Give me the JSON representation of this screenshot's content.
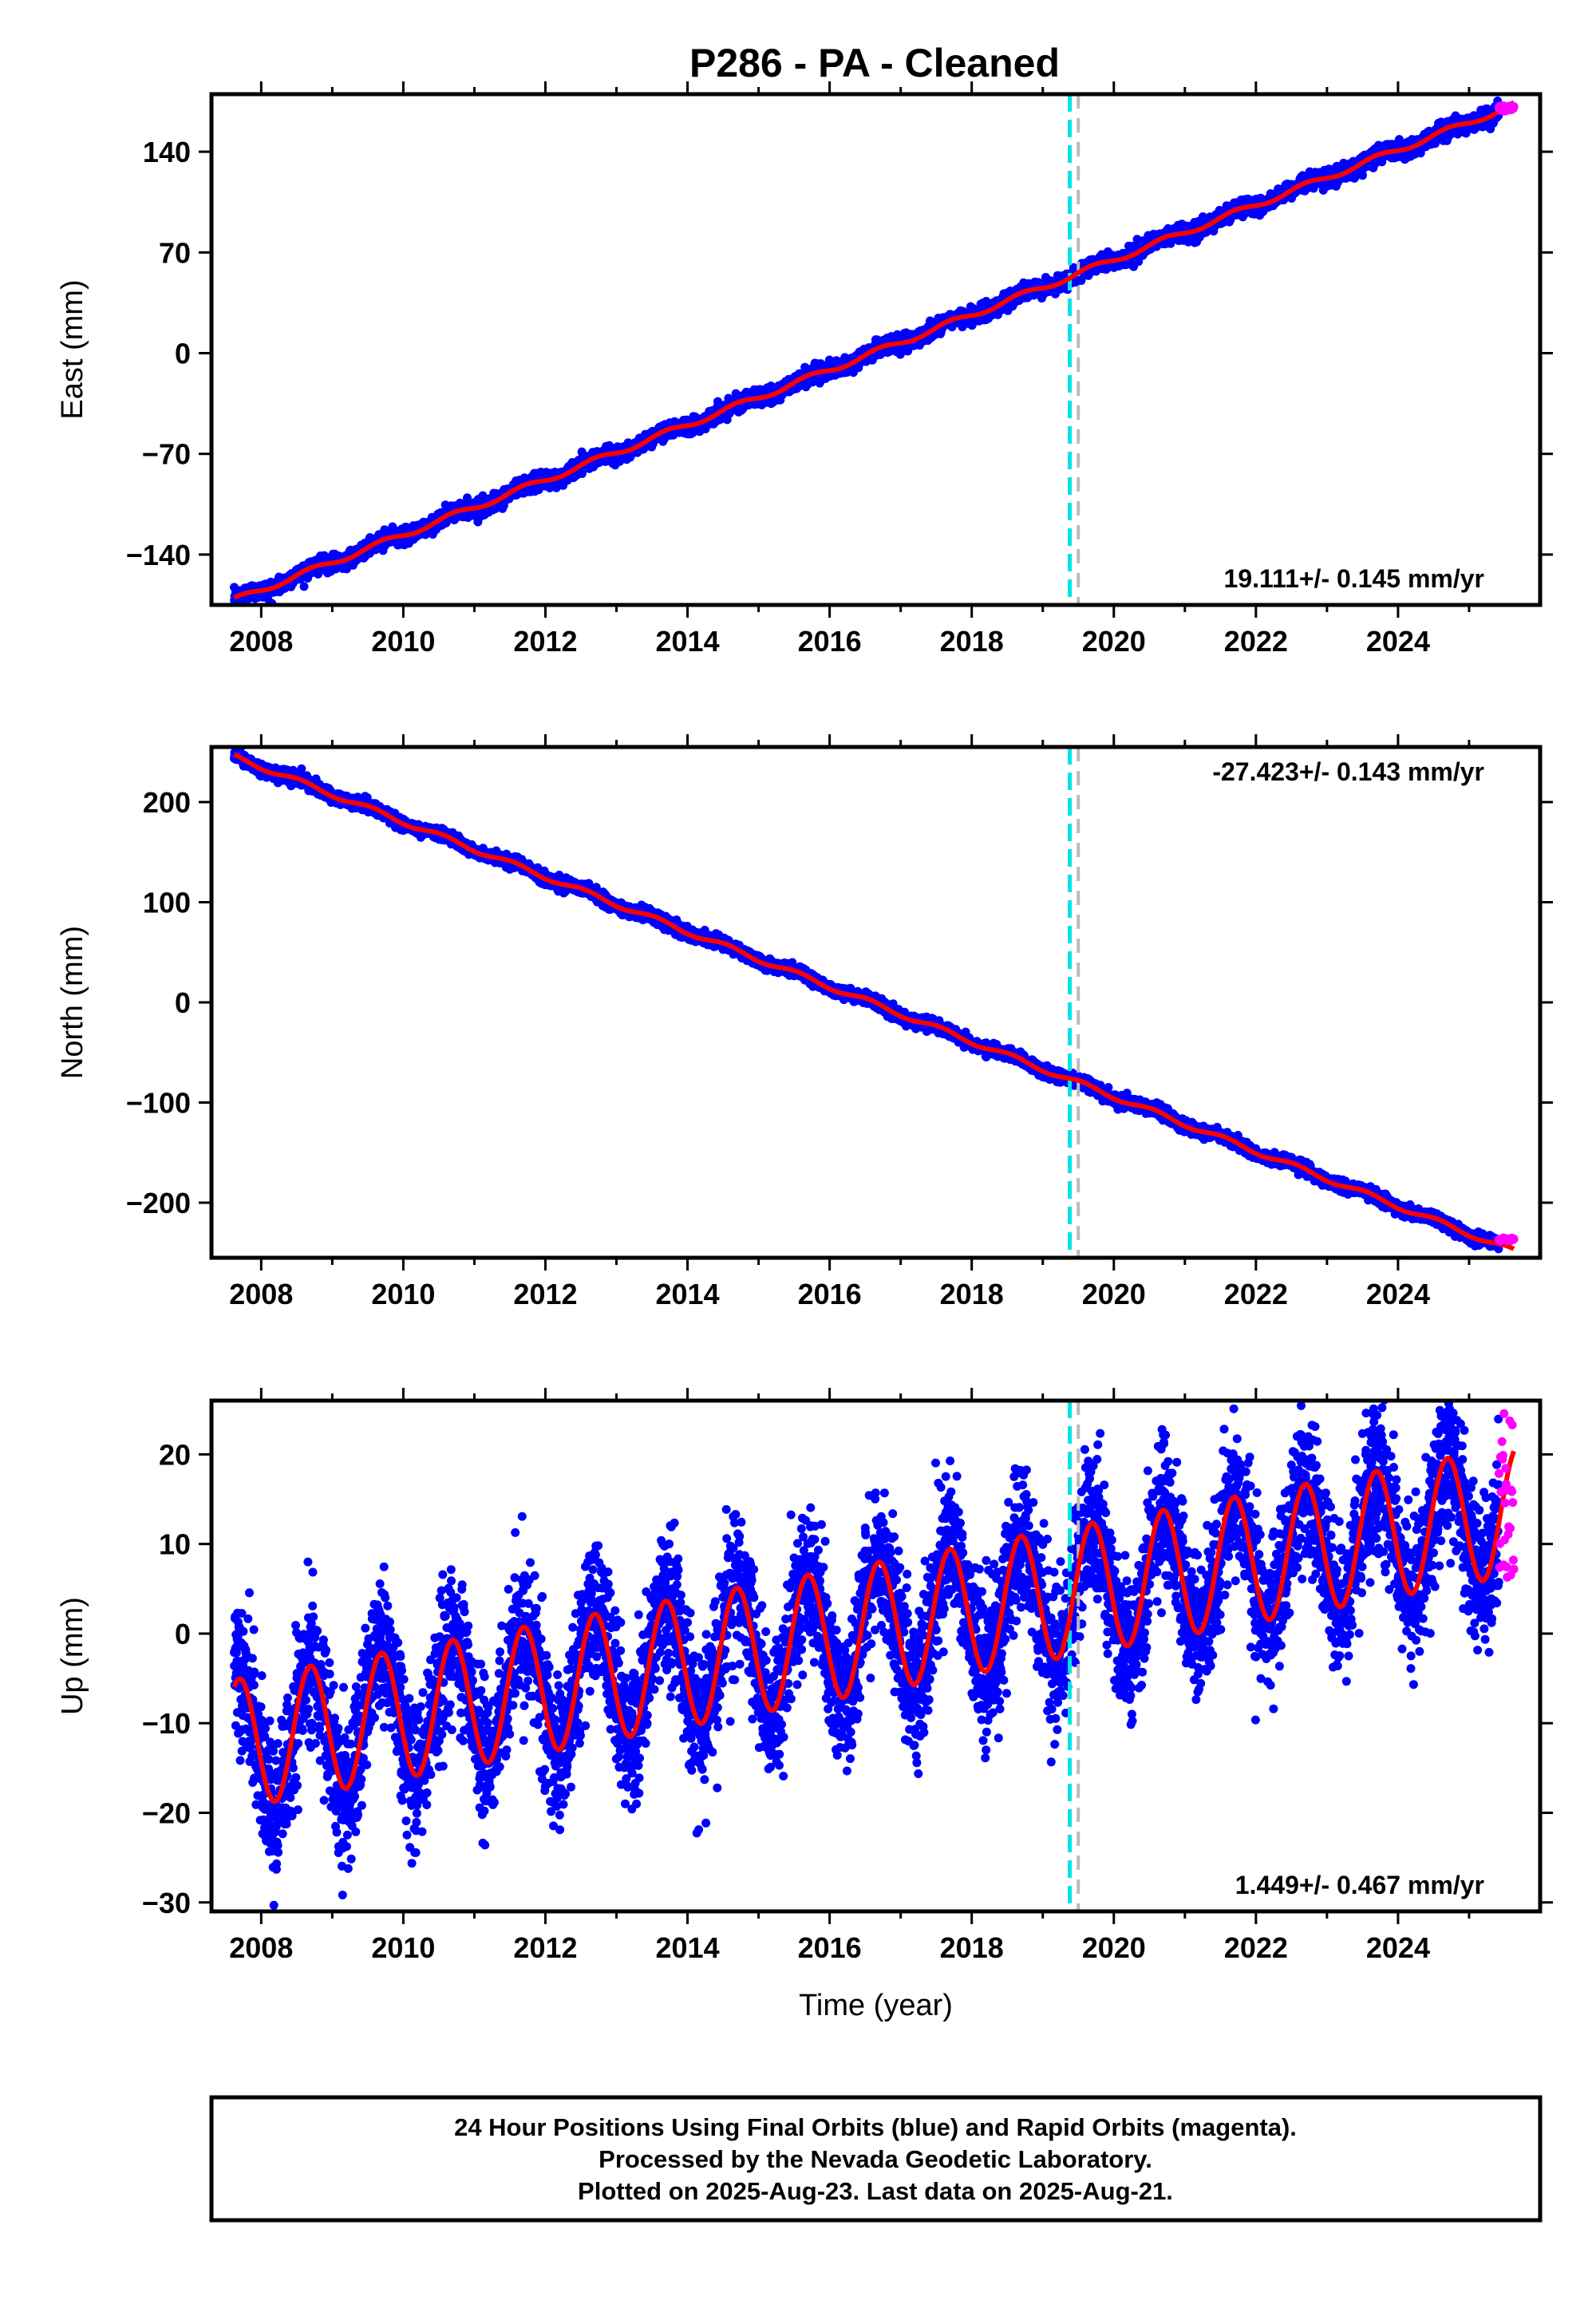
{
  "title": "P286  - PA - Cleaned",
  "colors": {
    "final_orbits": "#0000ff",
    "rapid_orbits": "#ff00ff",
    "model": "#ff0000",
    "equipment_change": "#00e5e5",
    "gap_line": "#bbbbbb"
  },
  "chart_data": [
    {
      "type": "scatter",
      "ylabel": "East (mm)",
      "xlabel": "",
      "xlim": [
        2007.3,
        2026.0
      ],
      "ylim": [
        -175,
        180
      ],
      "yticks": [
        -140,
        -70,
        0,
        70,
        140
      ],
      "xticks": [
        2008,
        2010,
        2012,
        2014,
        2016,
        2018,
        2020,
        2022,
        2024
      ],
      "xtick_labels": [
        "2008",
        "2010",
        "2012",
        "2014",
        "2016",
        "2018",
        "2020",
        "2022",
        "2024"
      ],
      "rate": "19.111+/- 0.145 mm/yr",
      "rate_position": "bottom-right",
      "model": {
        "t0": 2016.5,
        "offset": -2,
        "slope": 19.111,
        "annual_amp": 2.0,
        "annual_phase": 0.3,
        "noise": 2.6
      },
      "rapid": {
        "start": 2025.42,
        "end": 2025.63,
        "values": [
          168,
          172
        ]
      },
      "vlines": [
        {
          "x": 2019.38,
          "style": "equipment"
        },
        {
          "x": 2019.5,
          "style": "gap"
        }
      ],
      "grid": false,
      "legend": "none"
    },
    {
      "type": "scatter",
      "ylabel": "North (mm)",
      "xlabel": "",
      "xlim": [
        2007.3,
        2026.0
      ],
      "ylim": [
        -255,
        255
      ],
      "yticks": [
        -200,
        -100,
        0,
        100,
        200
      ],
      "xticks": [
        2008,
        2010,
        2012,
        2014,
        2016,
        2018,
        2020,
        2022,
        2024
      ],
      "xtick_labels": [
        "2008",
        "2010",
        "2012",
        "2014",
        "2016",
        "2018",
        "2020",
        "2022",
        "2024"
      ],
      "rate": "-27.423+/- 0.143 mm/yr",
      "rate_position": "top-right",
      "model": {
        "t0": 2016.5,
        "offset": 2,
        "slope": -27.423,
        "annual_amp": 2.5,
        "annual_phase": 1.2,
        "noise": 2.8
      },
      "rapid": {
        "start": 2025.42,
        "end": 2025.63,
        "values": [
          -235,
          -238
        ]
      },
      "vlines": [
        {
          "x": 2019.38,
          "style": "equipment"
        },
        {
          "x": 2019.5,
          "style": "gap"
        }
      ],
      "grid": false,
      "legend": "none"
    },
    {
      "type": "scatter",
      "ylabel": "Up (mm)",
      "xlabel": "Time (year)",
      "xlim": [
        2007.3,
        2026.0
      ],
      "ylim": [
        -31,
        26
      ],
      "yticks": [
        -30,
        -20,
        -10,
        0,
        10,
        20
      ],
      "xticks": [
        2008,
        2010,
        2012,
        2014,
        2016,
        2018,
        2020,
        2022,
        2024
      ],
      "xtick_labels": [
        "2008",
        "2010",
        "2012",
        "2014",
        "2016",
        "2018",
        "2020",
        "2022",
        "2024"
      ],
      "rate": "1.449+/- 0.467 mm/yr",
      "rate_position": "bottom-right",
      "model": {
        "t0": 2016.5,
        "offset": 0.5,
        "slope": 1.449,
        "annual_amp": 7.2,
        "annual_phase": 0.35,
        "noise": 4.0
      },
      "rapid": {
        "start": 2025.42,
        "end": 2025.63,
        "values": [
          6,
          25
        ]
      },
      "vlines": [
        {
          "x": 2019.38,
          "style": "equipment"
        },
        {
          "x": 2019.5,
          "style": "gap"
        }
      ],
      "grid": false,
      "legend": "none"
    }
  ],
  "footer": {
    "line1": "24 Hour Positions Using Final Orbits (blue) and Rapid Orbits (magenta).",
    "line2": "Processed by the Nevada Geodetic Laboratory.",
    "line3": "Plotted on 2025-Aug-23. Last data on 2025-Aug-21."
  }
}
